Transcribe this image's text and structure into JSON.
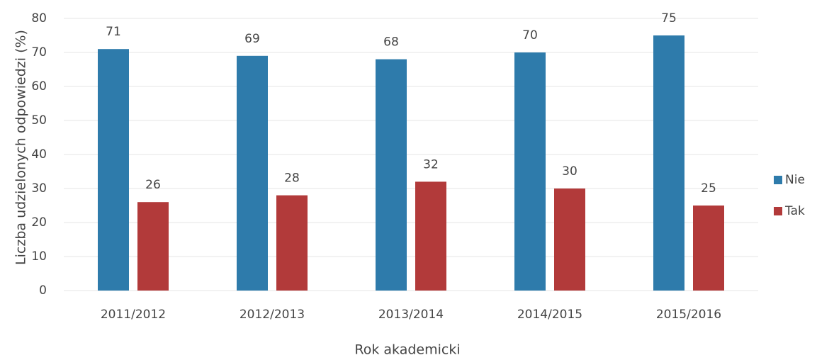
{
  "chart_data": {
    "type": "bar",
    "x_label": "Rok akademicki",
    "y_label": "Liczba udzielonych odpowiedzi (%)",
    "categories": [
      "2011/2012",
      "2012/2013",
      "2013/2014",
      "2014/2015",
      "2015/2016"
    ],
    "series": [
      {
        "name": "Nie",
        "color": "#2e7bab",
        "values": [
          71,
          69,
          68,
          70,
          75
        ]
      },
      {
        "name": "Tak",
        "color": "#b23a3a",
        "values": [
          26,
          28,
          32,
          30,
          25
        ]
      }
    ],
    "ylim": [
      0,
      80
    ],
    "yticks": [
      0,
      10,
      20,
      30,
      40,
      50,
      60,
      70,
      80
    ],
    "grid": true,
    "legend": "right"
  }
}
